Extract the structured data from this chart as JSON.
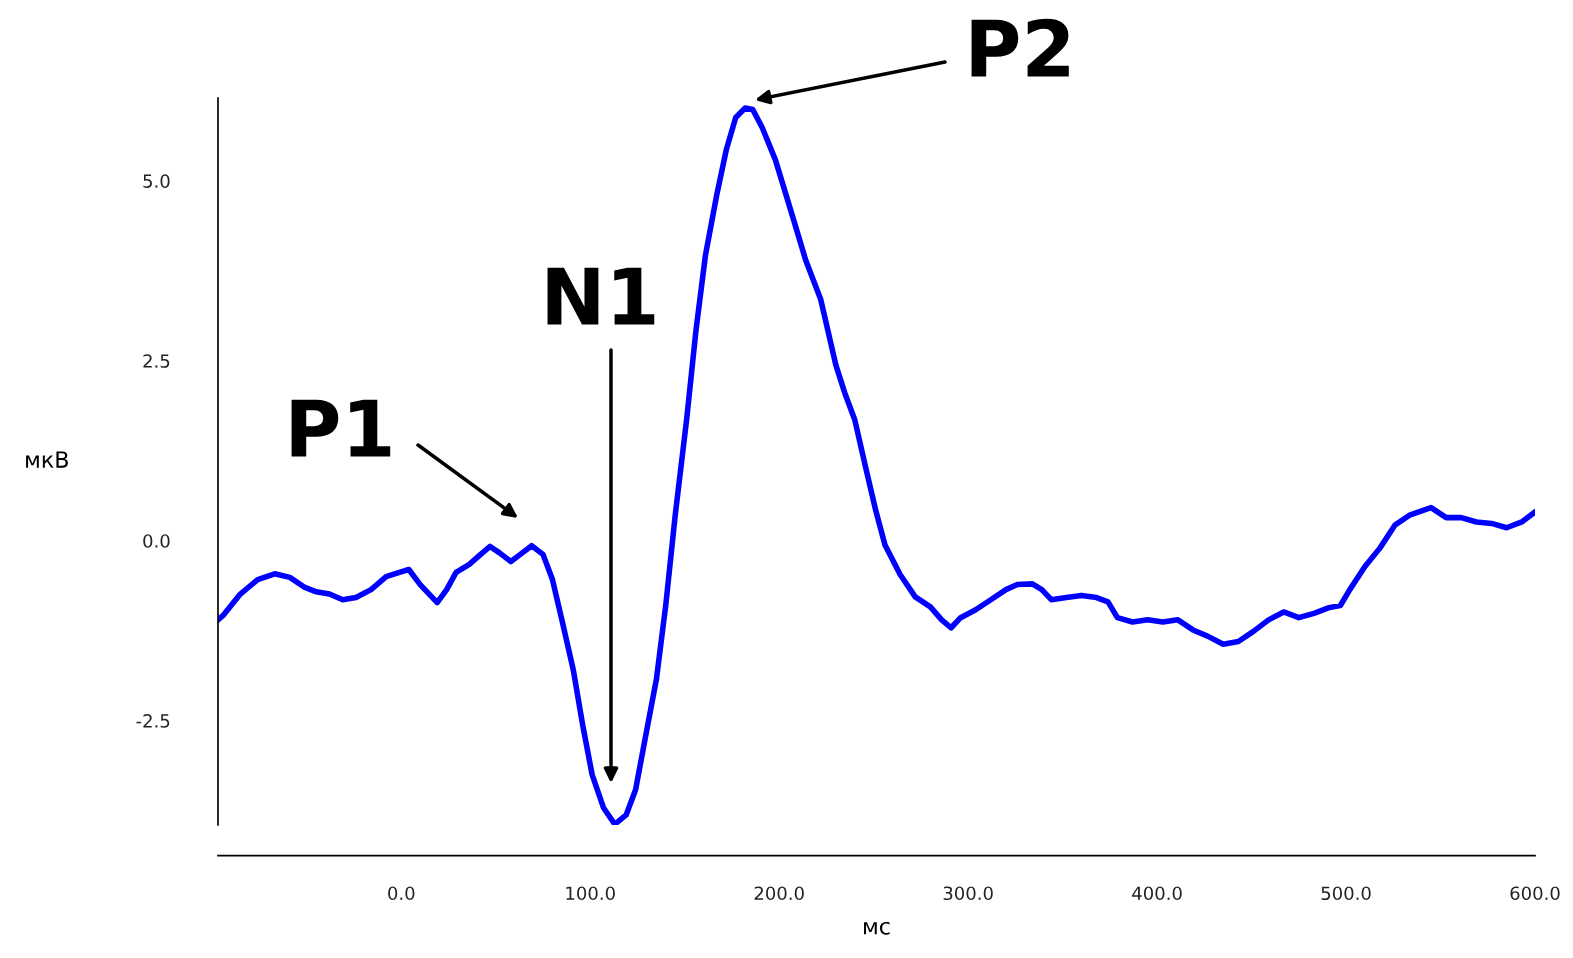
{
  "chart_data": {
    "type": "line",
    "xlabel": "мс",
    "ylabel": "мкВ",
    "x": [
      -97,
      -94,
      -85.5,
      -76,
      -67,
      -59,
      -51,
      -45,
      -38,
      -31,
      -24,
      -16,
      -8,
      -1,
      4,
      10,
      19,
      24,
      29,
      36,
      42,
      47,
      52,
      58,
      63,
      69,
      75,
      80,
      85,
      91,
      96,
      101,
      107,
      113,
      119,
      124,
      129,
      135,
      140,
      145,
      151,
      156,
      161,
      167,
      172,
      177,
      182,
      186,
      191,
      198,
      206,
      214,
      222,
      230,
      235,
      240,
      246,
      251,
      256,
      264,
      272,
      280,
      286,
      291,
      296,
      304,
      312,
      320,
      326,
      334,
      339,
      344,
      352,
      360,
      368,
      374,
      379,
      387,
      395,
      403,
      411,
      419,
      427,
      435,
      443,
      451,
      459,
      467,
      475,
      483,
      491,
      497,
      502,
      510,
      518,
      526,
      534,
      545,
      553,
      561,
      569,
      577,
      585,
      593,
      600
    ],
    "series": [
      {
        "color": "#0000ff",
        "values": [
          -1.1,
          -1.03,
          -0.75,
          -0.54,
          -0.46,
          -0.51,
          -0.65,
          -0.71,
          -0.74,
          -0.82,
          -0.79,
          -0.68,
          -0.5,
          -0.44,
          -0.4,
          -0.61,
          -0.86,
          -0.68,
          -0.44,
          -0.33,
          -0.19,
          -0.08,
          -0.17,
          -0.29,
          -0.19,
          -0.07,
          -0.19,
          -0.54,
          -1.1,
          -1.79,
          -2.56,
          -3.25,
          -3.71,
          -3.94,
          -3.81,
          -3.46,
          -2.76,
          -1.93,
          -0.89,
          0.36,
          1.68,
          2.93,
          3.97,
          4.81,
          5.43,
          5.88,
          6.01,
          5.99,
          5.74,
          5.29,
          4.6,
          3.9,
          3.35,
          2.44,
          2.03,
          1.68,
          0.99,
          0.43,
          -0.06,
          -0.47,
          -0.78,
          -0.92,
          -1.1,
          -1.21,
          -1.07,
          -0.96,
          -0.82,
          -0.68,
          -0.61,
          -0.6,
          -0.68,
          -0.82,
          -0.79,
          -0.76,
          -0.79,
          -0.85,
          -1.07,
          -1.13,
          -1.1,
          -1.13,
          -1.1,
          -1.24,
          -1.33,
          -1.44,
          -1.4,
          -1.26,
          -1.1,
          -0.99,
          -1.07,
          -1.01,
          -0.93,
          -0.9,
          -0.68,
          -0.36,
          -0.1,
          0.22,
          0.36,
          0.46,
          0.32,
          0.32,
          0.26,
          0.24,
          0.18,
          0.26,
          0.4
        ]
      }
    ],
    "xlim": [
      -97,
      600
    ],
    "ylim": [
      -3.95,
      6.15
    ],
    "xticks": [
      {
        "value": 0,
        "label": "0.0"
      },
      {
        "value": 100,
        "label": "100.0"
      },
      {
        "value": 200,
        "label": "200.0"
      },
      {
        "value": 300,
        "label": "300.0"
      },
      {
        "value": 400,
        "label": "400.0"
      },
      {
        "value": 500,
        "label": "500.0"
      },
      {
        "value": 600,
        "label": "600.0"
      }
    ],
    "yticks": [
      {
        "value": -2.5,
        "label": "-2.5"
      },
      {
        "value": 0,
        "label": "0.0"
      },
      {
        "value": 2.5,
        "label": "2.5"
      },
      {
        "value": 5,
        "label": "5.0"
      }
    ],
    "annotations": [
      "P1",
      "N1",
      "P2"
    ],
    "grid": false,
    "legend": false,
    "marker": "none",
    "line_style": "solid"
  }
}
